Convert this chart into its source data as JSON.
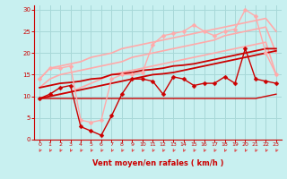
{
  "bg_color": "#c8f0f0",
  "grid_color": "#a8d8d8",
  "xlabel": "Vent moyen/en rafales ( km/h )",
  "xlabel_color": "#cc0000",
  "tick_color": "#cc0000",
  "arrow_color": "#dd4444",
  "xlim": [
    -0.5,
    23.5
  ],
  "ylim": [
    0,
    31
  ],
  "xticks": [
    0,
    1,
    2,
    3,
    4,
    5,
    6,
    7,
    8,
    9,
    10,
    11,
    12,
    13,
    14,
    15,
    16,
    17,
    18,
    19,
    20,
    21,
    22,
    23
  ],
  "yticks": [
    0,
    5,
    10,
    15,
    20,
    25,
    30
  ],
  "lines": [
    {
      "x": [
        0,
        1,
        2,
        3,
        4,
        5,
        6,
        7,
        8,
        9,
        10,
        11,
        12,
        13,
        14,
        15,
        16,
        17,
        18,
        19,
        20,
        21,
        22,
        23
      ],
      "y": [
        14,
        16.5,
        17,
        17.5,
        18,
        19,
        19.5,
        20,
        21,
        21.5,
        22,
        22.5,
        23,
        23.5,
        24,
        24.5,
        25,
        25.5,
        26,
        26.5,
        27,
        27.5,
        28,
        25
      ],
      "color": "#ffaaaa",
      "lw": 1.2,
      "marker": null,
      "ms": 0,
      "zorder": 2
    },
    {
      "x": [
        0,
        1,
        2,
        3,
        4,
        5,
        6,
        7,
        8,
        9,
        10,
        11,
        12,
        13,
        14,
        15,
        16,
        17,
        18,
        19,
        20,
        21,
        22,
        23
      ],
      "y": [
        12,
        14,
        15,
        15.5,
        16,
        16.5,
        17,
        17.5,
        18,
        19,
        19.5,
        20,
        20.5,
        21,
        21.5,
        22,
        22.5,
        23,
        24,
        24.5,
        25,
        25.5,
        26,
        20
      ],
      "color": "#ffaaaa",
      "lw": 1.2,
      "marker": null,
      "ms": 0,
      "zorder": 2
    },
    {
      "x": [
        0,
        1,
        2,
        3,
        4,
        5,
        6,
        7,
        8,
        9,
        10,
        11,
        12,
        13,
        14,
        15,
        16,
        17,
        18,
        19,
        20,
        21,
        22,
        23
      ],
      "y": [
        9.5,
        10,
        10.5,
        11,
        12,
        13,
        14,
        15,
        15.5,
        16,
        16.5,
        17,
        17.5,
        18,
        18.5,
        19,
        19.5,
        20,
        20.5,
        21,
        21.5,
        22,
        22.5,
        15
      ],
      "color": "#ffaaaa",
      "lw": 1.2,
      "marker": null,
      "ms": 0,
      "zorder": 2
    },
    {
      "x": [
        0,
        1,
        2,
        3,
        4,
        5,
        6,
        7,
        8,
        9,
        10,
        11,
        12,
        13,
        14,
        15,
        16,
        17,
        18,
        19,
        20,
        21,
        22,
        23
      ],
      "y": [
        14,
        16.5,
        16.5,
        17,
        4.5,
        4,
        4.5,
        14,
        15,
        15,
        15.5,
        22,
        24,
        24.5,
        25,
        26.5,
        25,
        24,
        25,
        25.5,
        30,
        28.5,
        20,
        15
      ],
      "color": "#ffaaaa",
      "lw": 1.0,
      "marker": "D",
      "ms": 2.5,
      "zorder": 4
    },
    {
      "x": [
        0,
        1,
        2,
        3,
        4,
        5,
        6,
        7,
        8,
        9,
        10,
        11,
        12,
        13,
        14,
        15,
        16,
        17,
        18,
        19,
        20,
        21,
        22,
        23
      ],
      "y": [
        12,
        12.5,
        13,
        13.2,
        13.5,
        14,
        14.2,
        15,
        15.2,
        15.5,
        16,
        16.2,
        16.5,
        17,
        17.2,
        17.5,
        18,
        18.5,
        19,
        19.5,
        20,
        20.5,
        21,
        21
      ],
      "color": "#cc0000",
      "lw": 1.3,
      "marker": null,
      "ms": 0,
      "zorder": 3
    },
    {
      "x": [
        0,
        1,
        2,
        3,
        4,
        5,
        6,
        7,
        8,
        9,
        10,
        11,
        12,
        13,
        14,
        15,
        16,
        17,
        18,
        19,
        20,
        21,
        22,
        23
      ],
      "y": [
        9.5,
        10,
        10.5,
        11,
        11.5,
        12,
        12.5,
        13,
        13.5,
        14,
        14.5,
        15,
        15.2,
        15.5,
        16,
        16.5,
        17,
        17.5,
        18,
        18.5,
        19,
        19.5,
        20,
        20.5
      ],
      "color": "#cc0000",
      "lw": 1.3,
      "marker": null,
      "ms": 0,
      "zorder": 3
    },
    {
      "x": [
        0,
        1,
        2,
        3,
        4,
        5,
        6,
        7,
        8,
        9,
        10,
        11,
        12,
        13,
        14,
        15,
        16,
        17,
        18,
        19,
        20,
        21,
        22,
        23
      ],
      "y": [
        9.5,
        9.5,
        9.5,
        9.5,
        9.5,
        9.5,
        9.5,
        9.5,
        9.5,
        9.5,
        9.5,
        9.5,
        9.5,
        9.5,
        9.5,
        9.5,
        9.5,
        9.5,
        9.5,
        9.5,
        9.5,
        9.5,
        10,
        10.5
      ],
      "color": "#cc0000",
      "lw": 1.0,
      "marker": null,
      "ms": 0,
      "zorder": 3
    },
    {
      "x": [
        0,
        1,
        2,
        3,
        4,
        5,
        6,
        7,
        8,
        9,
        10,
        11,
        12,
        13,
        14,
        15,
        16,
        17,
        18,
        19,
        20,
        21,
        22,
        23
      ],
      "y": [
        9.5,
        10.5,
        12,
        12.5,
        3,
        2,
        1,
        5.5,
        10.5,
        14,
        14,
        13.5,
        10.5,
        14.5,
        14,
        12.5,
        13,
        13,
        14.5,
        13,
        21,
        14,
        13.5,
        13
      ],
      "color": "#cc0000",
      "lw": 1.0,
      "marker": "D",
      "ms": 2.5,
      "zorder": 5
    }
  ]
}
